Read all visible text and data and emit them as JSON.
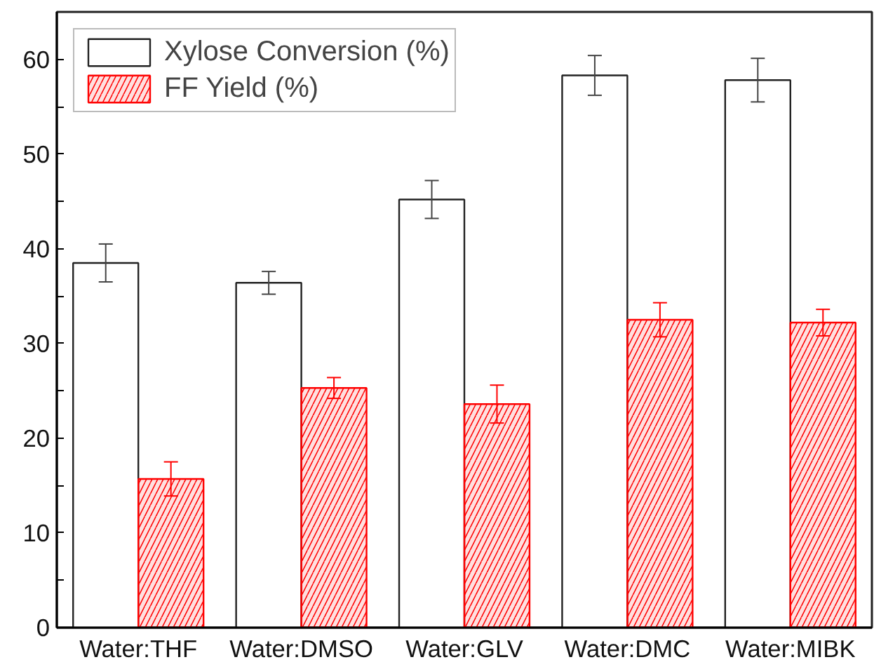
{
  "chart_data": {
    "type": "bar",
    "categories": [
      "Water:THF",
      "Water:DMSO",
      "Water:GLV",
      "Water:DMC",
      "Water:MIBK"
    ],
    "series": [
      {
        "name": "Xylose Conversion (%)",
        "color": "#ffffff",
        "values": [
          38.5,
          36.4,
          45.2,
          58.3,
          57.8
        ],
        "errors": [
          2.0,
          1.2,
          2.0,
          2.1,
          2.3
        ]
      },
      {
        "name": "FF Yield (%)",
        "color": "#ff0000",
        "values": [
          15.7,
          25.3,
          23.6,
          32.5,
          32.2
        ],
        "errors": [
          1.8,
          1.1,
          2.0,
          1.8,
          1.4
        ]
      }
    ],
    "ylim": [
      0,
      65
    ],
    "yticks": [
      0,
      {
        "value": 5,
        "label": null
      },
      10,
      {
        "value": 15,
        "label": null
      },
      20,
      {
        "value": 25,
        "label": null
      },
      30,
      {
        "value": 35,
        "label": null
      },
      40,
      {
        "value": 45,
        "label": null
      },
      50,
      {
        "value": 55,
        "label": null
      },
      60
    ],
    "legend": "top left",
    "grid": false
  }
}
